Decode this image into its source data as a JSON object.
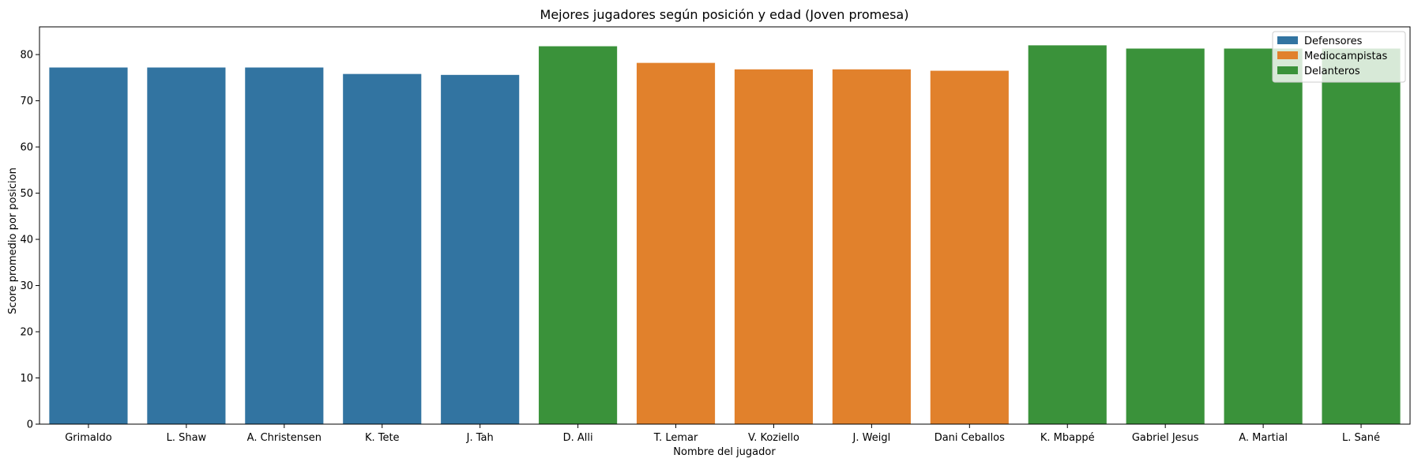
{
  "chart_data": {
    "type": "bar",
    "title": "Mejores jugadores según posición y edad (Joven promesa)",
    "xlabel": "Nombre del jugador",
    "ylabel": "Score promedio por posicion",
    "ylim": [
      0,
      86
    ],
    "yticks": [
      0,
      10,
      20,
      30,
      40,
      50,
      60,
      70,
      80
    ],
    "grid": false,
    "legend_position": "top-right",
    "categories": [
      "Grimaldo",
      "L. Shaw",
      "A. Christensen",
      "K. Tete",
      "J. Tah",
      "D. Alli",
      "T. Lemar",
      "V. Koziello",
      "J. Weigl",
      "Dani Ceballos",
      "K. Mbappé",
      "Gabriel Jesus",
      "A. Martial",
      "L. Sané"
    ],
    "values": [
      77.2,
      77.2,
      77.2,
      75.8,
      75.6,
      81.8,
      78.2,
      76.8,
      76.8,
      76.5,
      82.0,
      81.3,
      81.3,
      81.3
    ],
    "groups": [
      "Defensores",
      "Defensores",
      "Defensores",
      "Defensores",
      "Defensores",
      "Delanteros",
      "Mediocampistas",
      "Mediocampistas",
      "Mediocampistas",
      "Mediocampistas",
      "Delanteros",
      "Delanteros",
      "Delanteros",
      "Delanteros"
    ],
    "legend": [
      {
        "name": "Defensores",
        "color": "#3274a1"
      },
      {
        "name": "Mediocampistas",
        "color": "#e1812c"
      },
      {
        "name": "Delanteros",
        "color": "#3a923a"
      }
    ]
  }
}
